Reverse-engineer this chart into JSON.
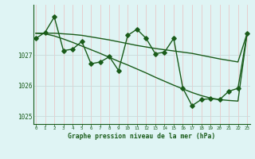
{
  "title": "Graphe pression niveau de la mer (hPa)",
  "bg_color": "#dff4f4",
  "line_color": "#1a5c1a",
  "vgrid_color": "#e8c8c8",
  "hgrid_color": "#c8dada",
  "hours": [
    0,
    1,
    2,
    3,
    4,
    5,
    6,
    7,
    8,
    9,
    10,
    11,
    12,
    13,
    14,
    15,
    16,
    17,
    18,
    19,
    20,
    21,
    22,
    23
  ],
  "pressure": [
    1027.55,
    1027.75,
    1028.25,
    1027.15,
    1027.2,
    1027.45,
    1026.72,
    1026.78,
    1026.95,
    1026.5,
    1027.65,
    1027.85,
    1027.55,
    1027.05,
    1027.1,
    1027.55,
    1025.92,
    1025.35,
    1025.55,
    1025.58,
    1025.55,
    1025.82,
    1025.92,
    1027.72
  ],
  "smooth1": [
    1027.72,
    1027.72,
    1027.72,
    1027.7,
    1027.68,
    1027.65,
    1027.6,
    1027.55,
    1027.5,
    1027.44,
    1027.38,
    1027.32,
    1027.27,
    1027.22,
    1027.18,
    1027.14,
    1027.1,
    1027.06,
    1027.0,
    1026.94,
    1026.88,
    1026.83,
    1026.78,
    1027.72
  ],
  "smooth2": [
    1027.72,
    1027.7,
    1027.63,
    1027.53,
    1027.42,
    1027.3,
    1027.18,
    1027.06,
    1026.93,
    1026.8,
    1026.68,
    1026.55,
    1026.42,
    1026.28,
    1026.15,
    1026.02,
    1025.9,
    1025.78,
    1025.68,
    1025.6,
    1025.55,
    1025.52,
    1025.5,
    1027.72
  ],
  "ylim": [
    1024.75,
    1028.65
  ],
  "yticks": [
    1025,
    1026,
    1027
  ],
  "xlim": [
    -0.3,
    23.3
  ],
  "xticks": [
    0,
    1,
    2,
    3,
    4,
    5,
    6,
    7,
    8,
    9,
    10,
    11,
    12,
    13,
    14,
    15,
    16,
    17,
    18,
    19,
    20,
    21,
    22,
    23
  ],
  "markersize": 2.8,
  "linewidth": 1.0
}
